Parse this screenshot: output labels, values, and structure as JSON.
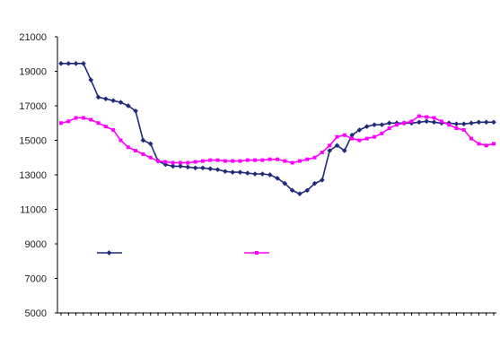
{
  "chart_data": {
    "type": "line",
    "title": "",
    "xlabel": "",
    "ylabel": "",
    "ylim": [
      5000,
      21000
    ],
    "yticks": [
      "21000",
      "19000",
      "17000",
      "15000",
      "13000",
      "11000",
      "9000",
      "7000",
      "5000"
    ],
    "xticks_count": 59,
    "x_tick_labels_note": "",
    "grid": false,
    "legend_position": "middle",
    "series": [
      {
        "name": "",
        "color": "#1f2a7a",
        "marker": "diamond",
        "values": [
          19450,
          19450,
          19450,
          19450,
          18500,
          17500,
          17400,
          17300,
          17200,
          17000,
          16700,
          15000,
          14800,
          13800,
          13600,
          13500,
          13500,
          13450,
          13400,
          13400,
          13350,
          13300,
          13200,
          13150,
          13150,
          13100,
          13050,
          13050,
          13000,
          12800,
          12500,
          12100,
          11900,
          12100,
          12500,
          12700,
          14400,
          14700,
          14400,
          15300,
          15600,
          15800,
          15900,
          15900,
          16000,
          16000,
          16000,
          16000,
          16050,
          16100,
          16050,
          16000,
          16000,
          15950,
          15950,
          16000,
          16050,
          16050,
          16050
        ]
      },
      {
        "name": "",
        "color": "#ff00ff",
        "marker": "square",
        "values": [
          16000,
          16100,
          16300,
          16300,
          16200,
          16000,
          15800,
          15600,
          15000,
          14600,
          14400,
          14200,
          14000,
          13800,
          13750,
          13700,
          13700,
          13700,
          13750,
          13800,
          13850,
          13850,
          13800,
          13800,
          13800,
          13850,
          13850,
          13850,
          13900,
          13900,
          13800,
          13700,
          13800,
          13900,
          14000,
          14300,
          14700,
          15200,
          15300,
          15100,
          15000,
          15100,
          15200,
          15400,
          15700,
          15900,
          16000,
          16100,
          16400,
          16350,
          16300,
          16100,
          15900,
          15700,
          15600,
          15100,
          14800,
          14700,
          14800
        ]
      }
    ]
  }
}
